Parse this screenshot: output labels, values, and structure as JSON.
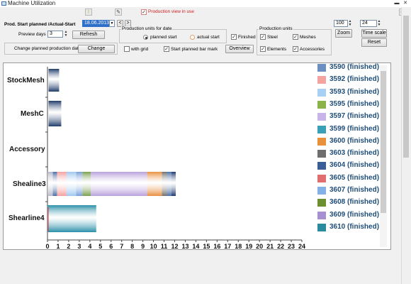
{
  "window": {
    "title": "Machine Utilization"
  },
  "toolbar": {
    "production_view_label": "Production view in use"
  },
  "prod_start": {
    "label": "Prod. Start planned /Actual-Start",
    "date_value": "18.06.2013",
    "prev_btn": "<",
    "next_btn": ">"
  },
  "preview": {
    "label": "Preview days",
    "value": "3",
    "refresh_btn": "Refresh"
  },
  "change_date": {
    "label": "Change planned production date",
    "button": "Change"
  },
  "units_for_date": {
    "group_title": "Production units for date",
    "radio_planned": "planned start",
    "radio_actual": "actual start",
    "with_grid": "with grid",
    "start_planned_bar_mark": "Start planned bar mark"
  },
  "finished_label": "Finished",
  "overview_btn": "Overview",
  "production_units": {
    "group_title": "Production units",
    "steel": "Steel",
    "meshes": "Meshes",
    "elements": "Elements",
    "accessories": "Accessories"
  },
  "zoom": {
    "value": "100",
    "button": "Zoom"
  },
  "timescale": {
    "value": "24",
    "button": "Time scale",
    "reset": "Reset"
  },
  "chart_data": {
    "type": "bar",
    "orientation": "horizontal-gantt",
    "categories": [
      "StockMesh",
      "MeshC",
      "Accessory",
      "Shealine3",
      "Shearline4"
    ],
    "x_ticks": [
      "0",
      "1",
      "2",
      "3",
      "4",
      "5",
      "6",
      "7",
      "8",
      "9",
      "10",
      "11",
      "12",
      "13",
      "14",
      "15",
      "16",
      "17",
      "18",
      "19",
      "20",
      "21",
      "22",
      "23",
      "24"
    ],
    "xlim": [
      0,
      24
    ],
    "bars": [
      {
        "row": 0,
        "start": 0.1,
        "end": 1.1,
        "color": "#1f3a6a"
      },
      {
        "row": 1,
        "start": 0.1,
        "end": 1.3,
        "color": "#1f3a6a"
      },
      {
        "row": 3,
        "start": 0.0,
        "end": 0.5,
        "color": "#b8b8c8"
      },
      {
        "row": 3,
        "start": 0.5,
        "end": 0.9,
        "color": "#4a6fa8"
      },
      {
        "row": 3,
        "start": 0.9,
        "end": 1.8,
        "color": "#f4a0a0"
      },
      {
        "row": 3,
        "start": 1.8,
        "end": 2.7,
        "color": "#9ec8f0"
      },
      {
        "row": 3,
        "start": 2.7,
        "end": 3.3,
        "color": "#7a9ed8"
      },
      {
        "row": 3,
        "start": 3.3,
        "end": 4.1,
        "color": "#7aa050"
      },
      {
        "row": 3,
        "start": 4.1,
        "end": 9.4,
        "color": "#b8a0dc"
      },
      {
        "row": 3,
        "start": 9.4,
        "end": 10.8,
        "color": "#e89040"
      },
      {
        "row": 3,
        "start": 10.8,
        "end": 11.3,
        "color": "#707070"
      },
      {
        "row": 3,
        "start": 11.3,
        "end": 11.7,
        "color": "#4a6fa8"
      },
      {
        "row": 3,
        "start": 11.7,
        "end": 12.1,
        "color": "#1f3a6a"
      },
      {
        "row": 4,
        "start": 0.0,
        "end": 4.6,
        "color": "#2a8fa8"
      }
    ],
    "legend": [
      {
        "label": "3590  (finished)",
        "color": "#6b8fc0"
      },
      {
        "label": "3592  (finished)",
        "color": "#f4a3a0"
      },
      {
        "label": "3593  (finished)",
        "color": "#a8d0f4"
      },
      {
        "label": "3595  (finished)",
        "color": "#8ab34a"
      },
      {
        "label": "3597  (finished)",
        "color": "#c8b4e8"
      },
      {
        "label": "3599  (finished)",
        "color": "#3aa0b8"
      },
      {
        "label": "3600  (finished)",
        "color": "#e8903a"
      },
      {
        "label": "3603  (finished)",
        "color": "#6e6e6e"
      },
      {
        "label": "3604  (finished)",
        "color": "#3a5f96"
      },
      {
        "label": "3605  (finished)",
        "color": "#e06e6e"
      },
      {
        "label": "3607  (finished)",
        "color": "#84b0e8"
      },
      {
        "label": "3608  (finished)",
        "color": "#6e8f30"
      },
      {
        "label": "3609  (finished)",
        "color": "#a690d0"
      },
      {
        "label": "3610  (finished)",
        "color": "#2a8aa0"
      }
    ]
  }
}
